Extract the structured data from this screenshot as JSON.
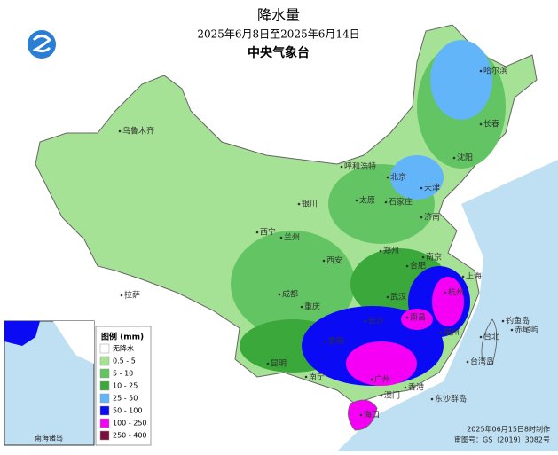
{
  "header": {
    "title": "降水量",
    "subtitle": "2025年6月8日至2025年6月14日",
    "agency": "中央气象台"
  },
  "legend": {
    "title": "图例 (mm)",
    "items": [
      {
        "label": "无降水",
        "color": "#ffffff"
      },
      {
        "label": "0.5 - 5",
        "color": "#a6e295"
      },
      {
        "label": "5 - 10",
        "color": "#62c462"
      },
      {
        "label": "10 - 25",
        "color": "#3aa83a"
      },
      {
        "label": "25 - 50",
        "color": "#63b5fa"
      },
      {
        "label": "50 - 100",
        "color": "#0a0af5"
      },
      {
        "label": "100 - 250",
        "color": "#f500f5"
      },
      {
        "label": "250 - 400",
        "color": "#7a0f3c"
      }
    ]
  },
  "cities": [
    "乌鲁木齐",
    "哈尔滨",
    "长春",
    "沈阳",
    "呼和浩特",
    "北京",
    "天津",
    "石家庄",
    "太原",
    "银川",
    "济南",
    "西宁",
    "兰州",
    "郑州",
    "西安",
    "合肥",
    "上海",
    "成都",
    "重庆",
    "拉萨",
    "杭州",
    "南京",
    "武汉",
    "长沙",
    "南昌",
    "福州",
    "贵阳",
    "昆明",
    "南宁",
    "广州",
    "香港",
    "澳门",
    "海口",
    "台北",
    "钓鱼岛",
    "赤尾屿",
    "东沙群岛",
    "台湾岛"
  ],
  "inset": {
    "label": "南海诸岛"
  },
  "footer": {
    "issued": "2025年06月15日8时制作",
    "approval": "审图号：GS（2019）3082号"
  }
}
